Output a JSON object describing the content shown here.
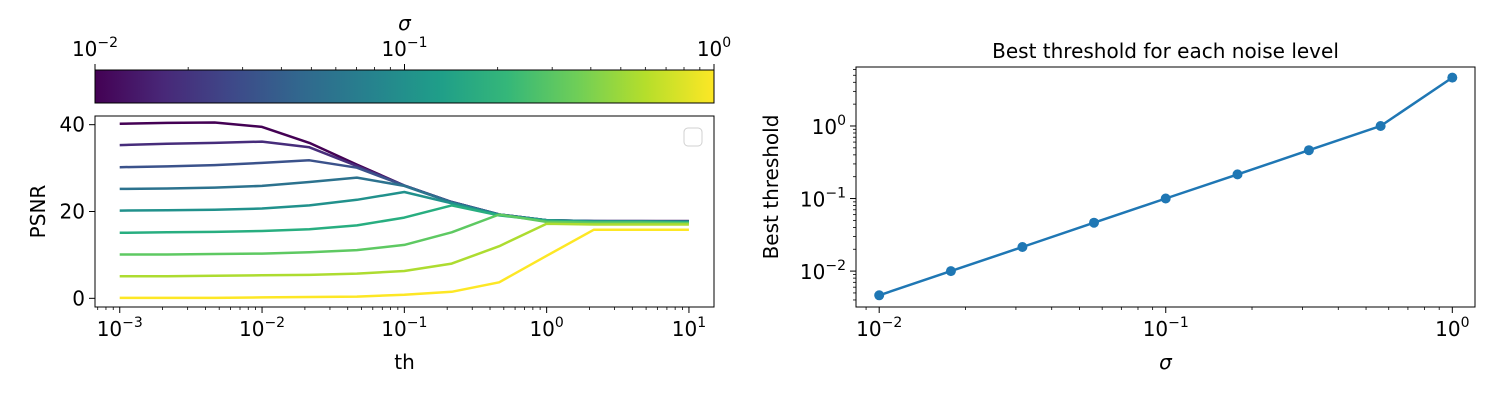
{
  "chart_data": [
    {
      "type": "line",
      "xlabel": "th",
      "ylabel": "PSNR",
      "x_scale": "log",
      "xlim": [
        0.00067,
        15
      ],
      "ylim": [
        -2,
        42
      ],
      "yticks": [
        0,
        20,
        40
      ],
      "xticks": [
        {
          "value": 0.001,
          "base": "10",
          "exp": "−3"
        },
        {
          "value": 0.01,
          "base": "10",
          "exp": "−2"
        },
        {
          "value": 0.1,
          "base": "10",
          "exp": "−1"
        },
        {
          "value": 1,
          "base": "10",
          "exp": "0"
        },
        {
          "value": 10,
          "base": "10",
          "exp": "1"
        }
      ],
      "legend": "top-right (empty)",
      "x": [
        0.001,
        0.00215,
        0.00464,
        0.01,
        0.0215,
        0.0464,
        0.1,
        0.215,
        0.464,
        1,
        2.15,
        4.64,
        10
      ],
      "series": [
        {
          "sigma": 0.01,
          "color": "#440154",
          "values": [
            40.2,
            40.4,
            40.5,
            39.5,
            35.8,
            30.8,
            26.0,
            22.2,
            19.3,
            18.0,
            17.8,
            17.8,
            17.8
          ]
        },
        {
          "sigma": 0.0178,
          "color": "#472d7b",
          "values": [
            35.3,
            35.6,
            35.8,
            36.1,
            34.8,
            30.5,
            26.0,
            22.2,
            19.3,
            18.0,
            17.8,
            17.8,
            17.8
          ]
        },
        {
          "sigma": 0.0316,
          "color": "#3b528b",
          "values": [
            30.2,
            30.4,
            30.7,
            31.2,
            31.8,
            30.1,
            26.0,
            22.2,
            19.3,
            18.0,
            17.8,
            17.8,
            17.7
          ]
        },
        {
          "sigma": 0.0562,
          "color": "#2c728e",
          "values": [
            25.2,
            25.3,
            25.5,
            25.9,
            26.8,
            27.8,
            25.9,
            22.1,
            19.3,
            18.0,
            17.8,
            17.7,
            17.7
          ]
        },
        {
          "sigma": 0.1,
          "color": "#21918c",
          "values": [
            20.2,
            20.3,
            20.4,
            20.7,
            21.4,
            22.7,
            24.5,
            21.9,
            19.2,
            18.0,
            17.7,
            17.7,
            17.6
          ]
        },
        {
          "sigma": 0.178,
          "color": "#28ae80",
          "values": [
            15.1,
            15.2,
            15.3,
            15.5,
            15.9,
            16.8,
            18.6,
            21.4,
            19.1,
            17.9,
            17.6,
            17.6,
            17.5
          ]
        },
        {
          "sigma": 0.316,
          "color": "#5ec962",
          "values": [
            10.1,
            10.1,
            10.2,
            10.3,
            10.6,
            11.1,
            12.3,
            15.2,
            19.3,
            17.6,
            17.4,
            17.4,
            17.3
          ]
        },
        {
          "sigma": 0.562,
          "color": "#addc30",
          "values": [
            5.1,
            5.1,
            5.2,
            5.3,
            5.4,
            5.7,
            6.3,
            8.0,
            12.0,
            17.2,
            17.0,
            17.0,
            17.0
          ]
        },
        {
          "sigma": 1.0,
          "color": "#fde725",
          "values": [
            0.1,
            0.1,
            0.1,
            0.2,
            0.3,
            0.4,
            0.8,
            1.5,
            3.7,
            9.8,
            15.8,
            15.8,
            15.8
          ]
        }
      ],
      "colorbar": {
        "label": "σ",
        "scale": "log",
        "range": [
          0.01,
          1
        ],
        "ticks": [
          {
            "value": 0.01,
            "base": "10",
            "exp": "−2"
          },
          {
            "value": 0.1,
            "base": "10",
            "exp": "−1"
          },
          {
            "value": 1,
            "base": "10",
            "exp": "0"
          }
        ],
        "colormap": [
          "#440154",
          "#482878",
          "#3e4989",
          "#31688e",
          "#26828e",
          "#1f9e89",
          "#35b779",
          "#6ece58",
          "#b5de2b",
          "#fde725"
        ]
      }
    },
    {
      "type": "line",
      "title": "Best threshold for each noise level",
      "xlabel": "σ",
      "ylabel": "Best threshold",
      "x_scale": "log",
      "y_scale": "log",
      "xlim": [
        0.0083,
        1.2
      ],
      "ylim": [
        0.0032,
        6.5
      ],
      "xticks": [
        {
          "value": 0.01,
          "base": "10",
          "exp": "−2"
        },
        {
          "value": 0.1,
          "base": "10",
          "exp": "−1"
        },
        {
          "value": 1,
          "base": "10",
          "exp": "0"
        }
      ],
      "yticks": [
        {
          "value": 0.01,
          "base": "10",
          "exp": "−2"
        },
        {
          "value": 0.1,
          "base": "10",
          "exp": "−1"
        },
        {
          "value": 1,
          "base": "10",
          "exp": "0"
        }
      ],
      "color": "#1f77b4",
      "x": [
        0.01,
        0.0178,
        0.0316,
        0.0562,
        0.1,
        0.178,
        0.316,
        0.562,
        1.0
      ],
      "values": [
        0.00464,
        0.01,
        0.0215,
        0.0464,
        0.1,
        0.215,
        0.464,
        1.0,
        4.64
      ]
    }
  ]
}
